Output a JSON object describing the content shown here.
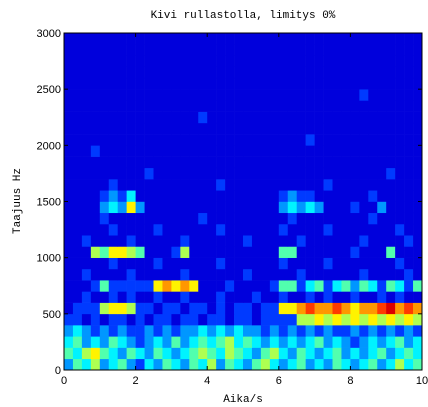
{
  "chart_data": {
    "type": "heatmap",
    "title": "Kivi rullastolla, limitys 0%",
    "x_label": "Aika/s",
    "y_label": "Taajuus Hz",
    "colormap": "jet",
    "xlim": [
      0,
      10
    ],
    "ylim": [
      0,
      3000
    ],
    "xticks": [
      0,
      2,
      4,
      6,
      8,
      10
    ],
    "yticks": [
      0,
      500,
      1000,
      1500,
      2000,
      2500,
      3000
    ],
    "z": [
      [
        3,
        5,
        4,
        6,
        3,
        4,
        5,
        3,
        2,
        4,
        3,
        5,
        4,
        3,
        5,
        4,
        6,
        3,
        5,
        4,
        3,
        5,
        6,
        4,
        3,
        4,
        5,
        3,
        4,
        3,
        5,
        4,
        3,
        4,
        5,
        3,
        4,
        6,
        4,
        5
      ],
      [
        5,
        4,
        6,
        7,
        5,
        4,
        3,
        5,
        4,
        3,
        5,
        4,
        3,
        4,
        5,
        6,
        5,
        4,
        6,
        5,
        4,
        3,
        5,
        6,
        4,
        3,
        5,
        4,
        3,
        4,
        5,
        3,
        4,
        3,
        4,
        5,
        3,
        4,
        5,
        4
      ],
      [
        4,
        5,
        3,
        4,
        3,
        5,
        4,
        3,
        2,
        3,
        4,
        3,
        5,
        3,
        4,
        5,
        4,
        5,
        6,
        4,
        5,
        4,
        3,
        4,
        3,
        4,
        3,
        4,
        5,
        3,
        4,
        3,
        2,
        3,
        4,
        3,
        4,
        5,
        3,
        4
      ],
      [
        3,
        4,
        3,
        2,
        3,
        2,
        3,
        2,
        2,
        3,
        2,
        3,
        2,
        3,
        3,
        4,
        3,
        4,
        3,
        4,
        3,
        3,
        2,
        3,
        2,
        3,
        2,
        3,
        2,
        3,
        2,
        2,
        3,
        2,
        3,
        2,
        3,
        2,
        3,
        2
      ],
      [
        2,
        2,
        1,
        2,
        1,
        2,
        2,
        1,
        2,
        1,
        2,
        2,
        1,
        2,
        2,
        1,
        2,
        2,
        1,
        2,
        2,
        1,
        2,
        2,
        2,
        2,
        6,
        6,
        7,
        6,
        7,
        6,
        7,
        6,
        7,
        6,
        7,
        6,
        7,
        6
      ],
      [
        1,
        2,
        2,
        2,
        6,
        7,
        7,
        6,
        2,
        2,
        1,
        2,
        2,
        1,
        2,
        2,
        1,
        2,
        1,
        2,
        2,
        1,
        2,
        2,
        7,
        7,
        8,
        9,
        8,
        8,
        9,
        8,
        7,
        8,
        8,
        9,
        10,
        8,
        9,
        8
      ],
      [
        1,
        1,
        2,
        1,
        1,
        2,
        1,
        2,
        1,
        1,
        2,
        1,
        1,
        2,
        1,
        1,
        1,
        2,
        1,
        1,
        1,
        2,
        1,
        1,
        2,
        1,
        1,
        2,
        1,
        2,
        1,
        1,
        2,
        1,
        1,
        2,
        1,
        2,
        1,
        1
      ],
      [
        1,
        1,
        1,
        2,
        5,
        2,
        2,
        2,
        2,
        2,
        7,
        8,
        7,
        8,
        7,
        1,
        1,
        1,
        2,
        1,
        1,
        1,
        1,
        2,
        5,
        5,
        2,
        4,
        5,
        2,
        4,
        5,
        3,
        5,
        4,
        2,
        5,
        4,
        2,
        5
      ],
      [
        1,
        1,
        2,
        1,
        1,
        1,
        1,
        2,
        1,
        1,
        1,
        1,
        1,
        2,
        1,
        1,
        1,
        1,
        1,
        1,
        2,
        1,
        1,
        1,
        1,
        1,
        2,
        1,
        1,
        1,
        1,
        1,
        1,
        2,
        1,
        1,
        1,
        1,
        2,
        1
      ],
      [
        1,
        1,
        1,
        1,
        1,
        2,
        1,
        1,
        1,
        1,
        2,
        1,
        1,
        1,
        1,
        1,
        1,
        2,
        1,
        1,
        1,
        1,
        1,
        1,
        2,
        1,
        1,
        1,
        1,
        2,
        1,
        1,
        1,
        1,
        1,
        1,
        1,
        2,
        1,
        1
      ],
      [
        1,
        1,
        1,
        6,
        5,
        7,
        7,
        6,
        5,
        1,
        1,
        1,
        2,
        6,
        1,
        1,
        1,
        1,
        1,
        1,
        1,
        1,
        1,
        1,
        5,
        5,
        1,
        1,
        1,
        1,
        1,
        1,
        2,
        1,
        1,
        1,
        5,
        1,
        1,
        1
      ],
      [
        1,
        1,
        2,
        1,
        1,
        1,
        1,
        2,
        1,
        1,
        1,
        1,
        1,
        2,
        1,
        1,
        1,
        1,
        1,
        1,
        2,
        1,
        1,
        1,
        1,
        1,
        2,
        1,
        1,
        1,
        1,
        1,
        1,
        2,
        1,
        1,
        1,
        1,
        2,
        1
      ],
      [
        1,
        1,
        1,
        1,
        1,
        2,
        1,
        1,
        1,
        1,
        2,
        1,
        1,
        1,
        1,
        1,
        1,
        2,
        1,
        1,
        1,
        1,
        1,
        1,
        2,
        1,
        1,
        1,
        1,
        2,
        1,
        1,
        1,
        1,
        1,
        1,
        1,
        2,
        1,
        1
      ],
      [
        1,
        1,
        1,
        1,
        2,
        1,
        1,
        1,
        1,
        1,
        1,
        1,
        1,
        1,
        1,
        2,
        1,
        1,
        1,
        1,
        1,
        1,
        1,
        1,
        1,
        2,
        1,
        1,
        1,
        1,
        1,
        1,
        1,
        1,
        2,
        1,
        1,
        1,
        1,
        1
      ],
      [
        1,
        1,
        1,
        1,
        3,
        4,
        3,
        7,
        3,
        1,
        1,
        1,
        1,
        1,
        1,
        1,
        1,
        1,
        1,
        1,
        1,
        1,
        1,
        1,
        3,
        4,
        3,
        4,
        3,
        1,
        1,
        1,
        2,
        1,
        1,
        3,
        1,
        1,
        1,
        1
      ],
      [
        1,
        1,
        1,
        1,
        2,
        3,
        2,
        4,
        1,
        1,
        1,
        1,
        1,
        1,
        1,
        1,
        1,
        1,
        1,
        1,
        1,
        1,
        1,
        1,
        2,
        3,
        2,
        2,
        1,
        1,
        1,
        1,
        1,
        1,
        2,
        1,
        1,
        1,
        1,
        1
      ],
      [
        1,
        1,
        1,
        1,
        1,
        2,
        1,
        1,
        1,
        1,
        1,
        1,
        1,
        1,
        1,
        1,
        1,
        2,
        1,
        1,
        1,
        1,
        1,
        1,
        1,
        1,
        1,
        1,
        1,
        2,
        1,
        1,
        1,
        1,
        1,
        1,
        1,
        1,
        1,
        1
      ],
      [
        1,
        1,
        1,
        1,
        1,
        1,
        1,
        1,
        1,
        2,
        1,
        1,
        1,
        1,
        1,
        1,
        1,
        1,
        1,
        1,
        1,
        1,
        1,
        1,
        1,
        1,
        1,
        1,
        1,
        1,
        1,
        1,
        1,
        1,
        1,
        1,
        2,
        1,
        1,
        1
      ],
      [
        1,
        1,
        1,
        1,
        1,
        1,
        1,
        1,
        1,
        1,
        1,
        1,
        1,
        1,
        1,
        1,
        1,
        1,
        1,
        1,
        1,
        1,
        1,
        1,
        1,
        1,
        1,
        1,
        1,
        1,
        1,
        1,
        1,
        1,
        1,
        1,
        1,
        1,
        1,
        1
      ],
      [
        1,
        1,
        1,
        2,
        1,
        1,
        1,
        1,
        1,
        1,
        1,
        1,
        1,
        1,
        1,
        1,
        1,
        1,
        1,
        1,
        1,
        1,
        1,
        1,
        1,
        1,
        1,
        1,
        1,
        1,
        1,
        1,
        1,
        1,
        1,
        1,
        1,
        1,
        1,
        1
      ],
      [
        1,
        1,
        1,
        1,
        1,
        1,
        1,
        1,
        1,
        1,
        1,
        1,
        1,
        1,
        1,
        1,
        1,
        1,
        1,
        1,
        1,
        1,
        1,
        1,
        1,
        1,
        1,
        2,
        1,
        1,
        1,
        1,
        1,
        1,
        1,
        1,
        1,
        1,
        1,
        1
      ],
      [
        1,
        1,
        1,
        1,
        1,
        1,
        1,
        1,
        1,
        1,
        1,
        1,
        1,
        1,
        1,
        1,
        1,
        1,
        1,
        1,
        1,
        1,
        1,
        1,
        1,
        1,
        1,
        1,
        1,
        1,
        1,
        1,
        1,
        1,
        1,
        1,
        1,
        1,
        1,
        1
      ],
      [
        1,
        1,
        1,
        1,
        1,
        1,
        1,
        1,
        1,
        1,
        1,
        1,
        1,
        1,
        1,
        2,
        1,
        1,
        1,
        1,
        1,
        1,
        1,
        1,
        1,
        1,
        1,
        1,
        1,
        1,
        1,
        1,
        1,
        1,
        1,
        1,
        1,
        1,
        1,
        1
      ],
      [
        1,
        1,
        1,
        1,
        1,
        1,
        1,
        1,
        1,
        1,
        1,
        1,
        1,
        1,
        1,
        1,
        1,
        1,
        1,
        1,
        1,
        1,
        1,
        1,
        1,
        1,
        1,
        1,
        1,
        1,
        1,
        1,
        1,
        1,
        1,
        1,
        1,
        1,
        1,
        1
      ],
      [
        1,
        1,
        1,
        1,
        1,
        1,
        1,
        1,
        1,
        1,
        1,
        1,
        1,
        1,
        1,
        1,
        1,
        1,
        1,
        1,
        1,
        1,
        1,
        1,
        1,
        1,
        1,
        1,
        1,
        1,
        1,
        1,
        1,
        2,
        1,
        1,
        1,
        1,
        1,
        1
      ],
      [
        1,
        1,
        1,
        1,
        1,
        1,
        1,
        1,
        1,
        1,
        1,
        1,
        1,
        1,
        1,
        1,
        1,
        1,
        1,
        1,
        1,
        1,
        1,
        1,
        1,
        1,
        1,
        1,
        1,
        1,
        1,
        1,
        1,
        1,
        1,
        1,
        1,
        1,
        1,
        1
      ],
      [
        1,
        1,
        1,
        1,
        1,
        1,
        1,
        1,
        1,
        1,
        1,
        1,
        1,
        1,
        1,
        1,
        1,
        1,
        1,
        1,
        1,
        1,
        1,
        1,
        1,
        1,
        1,
        1,
        1,
        1,
        1,
        1,
        1,
        1,
        1,
        1,
        1,
        1,
        1,
        1
      ],
      [
        1,
        1,
        1,
        1,
        1,
        1,
        1,
        1,
        1,
        1,
        1,
        1,
        1,
        1,
        1,
        1,
        1,
        1,
        1,
        1,
        1,
        1,
        1,
        1,
        1,
        1,
        1,
        1,
        1,
        1,
        1,
        1,
        1,
        1,
        1,
        1,
        1,
        1,
        1,
        1
      ],
      [
        1,
        1,
        1,
        1,
        1,
        1,
        1,
        1,
        1,
        1,
        1,
        1,
        1,
        1,
        1,
        1,
        1,
        1,
        1,
        1,
        1,
        1,
        1,
        1,
        1,
        1,
        1,
        1,
        1,
        1,
        1,
        1,
        1,
        1,
        1,
        1,
        1,
        1,
        1,
        1
      ],
      [
        1,
        1,
        1,
        1,
        1,
        1,
        1,
        1,
        1,
        1,
        1,
        1,
        1,
        1,
        1,
        1,
        1,
        1,
        1,
        1,
        1,
        1,
        1,
        1,
        1,
        1,
        1,
        1,
        1,
        1,
        1,
        1,
        1,
        1,
        1,
        1,
        1,
        1,
        1,
        1
      ]
    ]
  }
}
